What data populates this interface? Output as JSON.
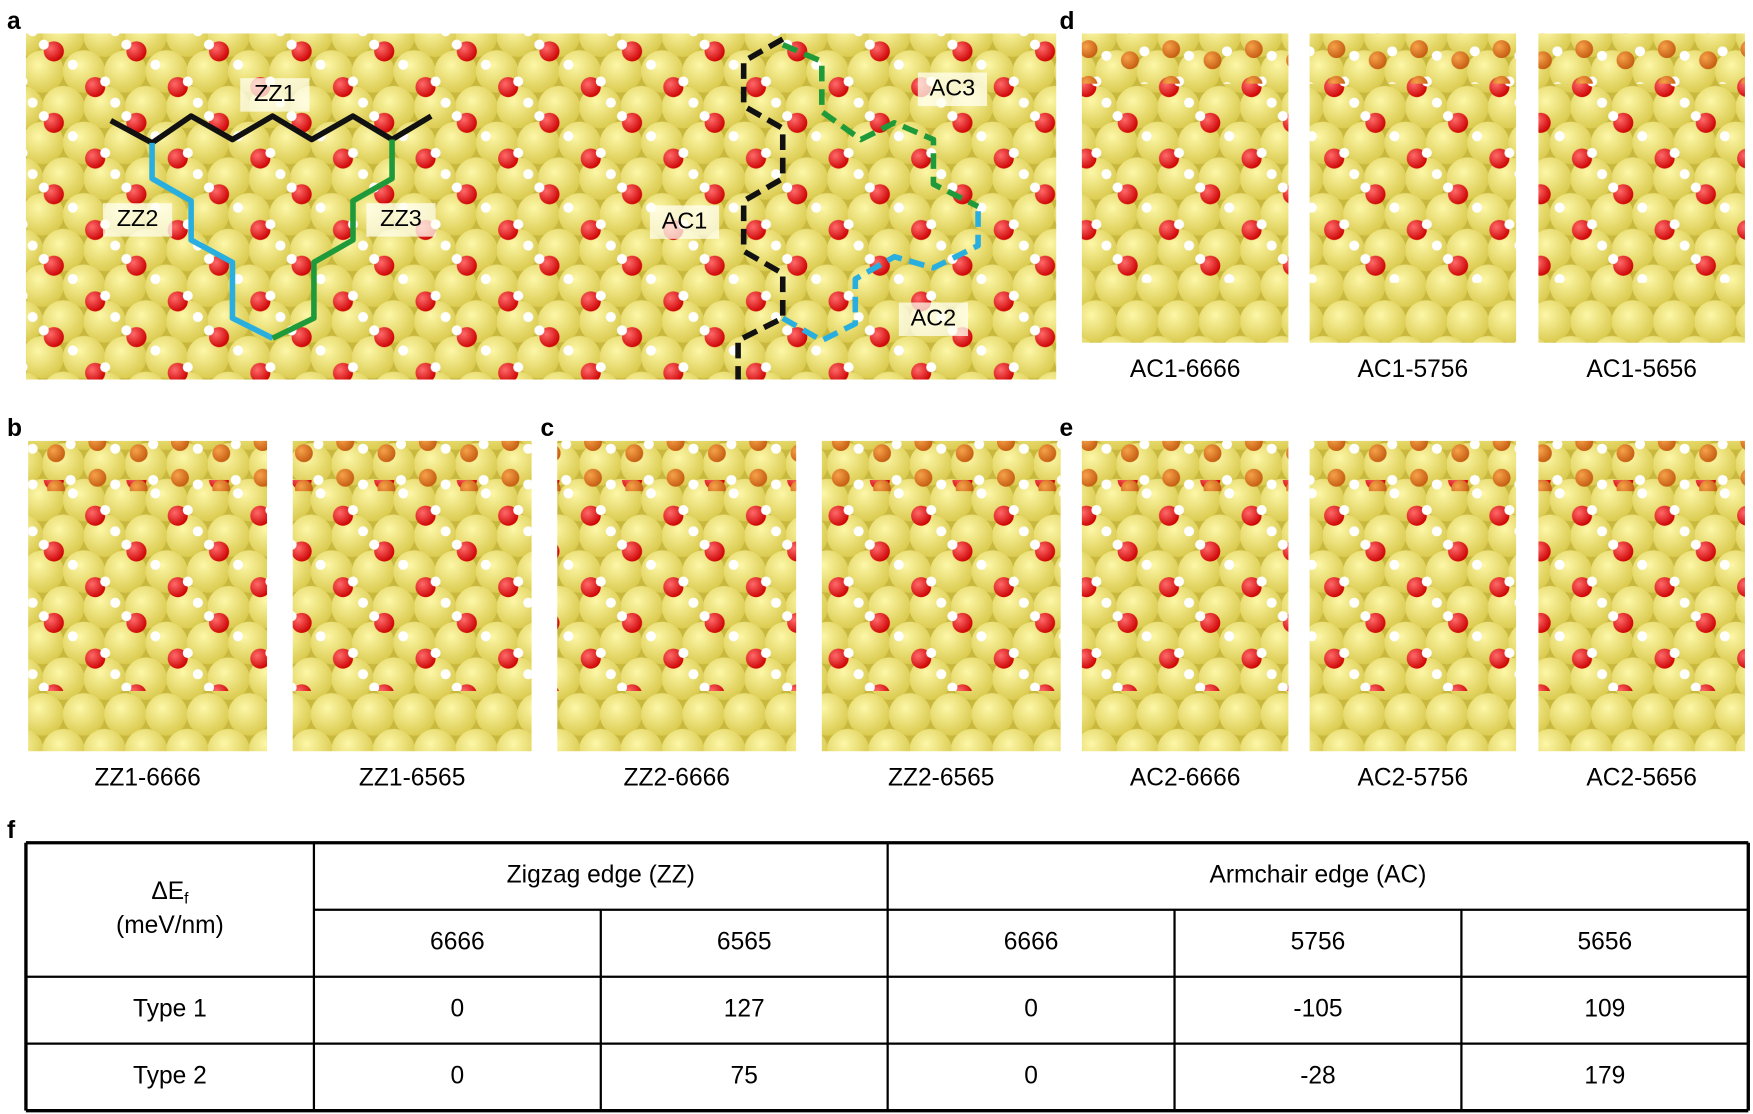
{
  "panels": [
    {
      "label": "a",
      "path_labels": [
        "ZZ1",
        "ZZ2",
        "ZZ3",
        "AC1",
        "AC2",
        "AC3"
      ]
    },
    {
      "label": "b",
      "captions": [
        "ZZ1-6666",
        "ZZ1-6565"
      ]
    },
    {
      "label": "c",
      "captions": [
        "ZZ2-6666",
        "ZZ2-6565"
      ]
    },
    {
      "label": "d",
      "captions": [
        "AC1-6666",
        "AC1-5756",
        "AC1-5656"
      ]
    },
    {
      "label": "e",
      "captions": [
        "AC2-6666",
        "AC2-5756",
        "AC2-5656"
      ]
    },
    {
      "label": "f"
    }
  ],
  "table": {
    "corner": {
      "symbol": "ΔE",
      "subscript": "f",
      "unit": "(meV/nm)"
    },
    "groups": [
      "Zigzag edge (ZZ)",
      "Armchair edge (AC)"
    ],
    "columns": [
      "6666",
      "6565",
      "6666",
      "5756",
      "5656"
    ],
    "rows": [
      [
        "Type 1",
        "0",
        "127",
        "0",
        "-105",
        "109"
      ],
      [
        "Type 2",
        "0",
        "75",
        "0",
        "-28",
        "179"
      ]
    ]
  }
}
